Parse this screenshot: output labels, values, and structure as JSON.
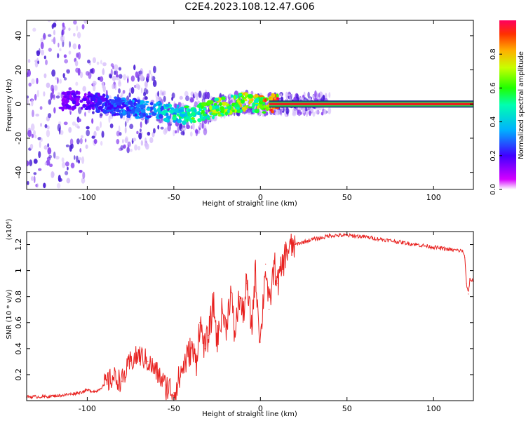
{
  "title": "C2E4.2023.108.12.47.G06",
  "colors": {
    "snr_line": "#e8211f",
    "track_core": "#e8211f",
    "track_edge_inner": "#22dd55",
    "track_edge_outer": "#1a1a7a",
    "scatter_strong": "#4a1fd6",
    "scatter_mid": "#8a45f0",
    "scatter_weak": "#d9c2fb",
    "frame": "#000000"
  },
  "colorbar": {
    "label": "Normalized spectral amplitude",
    "range": [
      0,
      1
    ],
    "ticks": [
      "0.0",
      "0.2",
      "0.4",
      "0.6",
      "0.8"
    ],
    "colormap": "gist_rainbow"
  },
  "chart_data": [
    {
      "type": "heatmap",
      "name": "spectrogram",
      "xlabel": "Height of straight line (km)",
      "ylabel": "Frequency (Hz)",
      "xlim": [
        -135,
        123
      ],
      "ylim": [
        -50,
        49
      ],
      "xticks": [
        -100,
        -50,
        0,
        50,
        100
      ],
      "yticks": [
        -40,
        -20,
        0,
        20,
        40
      ],
      "grid": false,
      "series": [
        {
          "kind": "mean_frequency_track",
          "x": [
            -115,
            -100,
            -90,
            -80,
            -70,
            -60,
            -55,
            -50,
            -45,
            -40,
            -35,
            -30,
            -25,
            -20,
            -15,
            -10,
            -5,
            0,
            5,
            10,
            20,
            50,
            100,
            123
          ],
          "y": [
            2,
            2,
            0,
            -2,
            -3,
            -4,
            -5,
            -5,
            -6,
            -6,
            -5,
            -4,
            -2,
            -1,
            0,
            1,
            1,
            0,
            0,
            0,
            0,
            0,
            0,
            0
          ],
          "amplitude": [
            0.15,
            0.2,
            0.25,
            0.3,
            0.35,
            0.4,
            0.45,
            0.5,
            0.55,
            0.6,
            0.6,
            0.65,
            0.7,
            0.7,
            0.7,
            0.75,
            0.75,
            0.8,
            0.9,
            1.0,
            1.0,
            1.0,
            1.0,
            1.0
          ]
        }
      ]
    },
    {
      "type": "line",
      "name": "snr",
      "xlabel": "Height of straight line (km)",
      "ylabel": "SNR (10 * v/v)",
      "multiplier_label": "(x10⁴)",
      "xlim": [
        -135,
        123
      ],
      "ylim": [
        0,
        1.3
      ],
      "xticks": [
        -100,
        -50,
        0,
        50,
        100
      ],
      "yticks": [
        0.2,
        0.4,
        0.6,
        0.8,
        1.0,
        1.2
      ],
      "grid": false,
      "series": [
        {
          "x": [
            -135,
            -125,
            -115,
            -105,
            -100,
            -95,
            -90,
            -85,
            -80,
            -75,
            -70,
            -65,
            -60,
            -55,
            -50,
            -48,
            -45,
            -40,
            -37,
            -35,
            -32,
            -30,
            -27,
            -25,
            -22,
            -20,
            -17,
            -15,
            -12,
            -10,
            -8,
            -5,
            -3,
            0,
            3,
            5,
            8,
            10,
            15,
            20,
            25,
            30,
            35,
            40,
            50,
            60,
            70,
            80,
            90,
            100,
            110,
            117,
            118,
            119,
            120,
            121,
            123
          ],
          "y": [
            0.03,
            0.03,
            0.04,
            0.06,
            0.08,
            0.07,
            0.12,
            0.18,
            0.15,
            0.3,
            0.35,
            0.3,
            0.22,
            0.12,
            0.06,
            0.12,
            0.25,
            0.4,
            0.3,
            0.6,
            0.4,
            0.5,
            0.75,
            0.45,
            0.7,
            0.55,
            0.85,
            0.5,
            0.8,
            0.65,
            0.9,
            0.55,
            1.0,
            0.45,
            1.05,
            0.7,
            1.05,
            0.9,
            1.15,
            1.2,
            1.22,
            1.24,
            1.25,
            1.27,
            1.27,
            1.26,
            1.24,
            1.22,
            1.2,
            1.18,
            1.16,
            1.15,
            1.1,
            0.9,
            0.82,
            0.93,
            0.92
          ]
        }
      ]
    }
  ]
}
